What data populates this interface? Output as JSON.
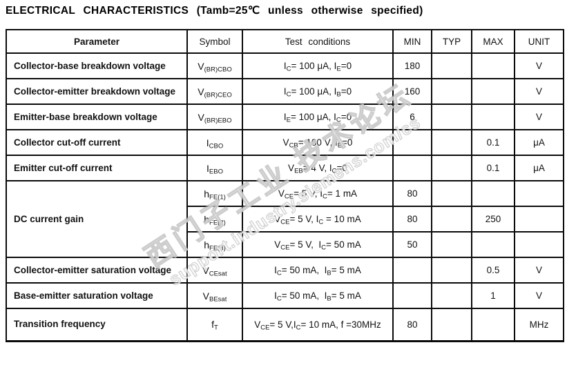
{
  "title": "ELECTRICAL CHARACTERISTICS (Tamb=25℃ unless otherwise specified)",
  "watermark": {
    "line1": "西门子工业 技术论坛",
    "line2": "support.industry.siemens.com/cs"
  },
  "colors": {
    "table_line": "#0a0a0a",
    "text": "#111111",
    "watermark_gray": "#a5a5a5",
    "background": "#ffffff"
  },
  "table": {
    "headers": [
      "Parameter",
      "Symbol",
      "Test conditions",
      "MIN",
      "TYP",
      "MAX",
      "UNIT"
    ],
    "rows": [
      {
        "param": "Collector-base breakdown voltage",
        "symbol": "V~(BR)CBO~",
        "conditions": "I~C~= 100 μA, I~E~=0",
        "min": "180",
        "typ": "",
        "max": "",
        "unit": "V"
      },
      {
        "param": "Collector-emitter breakdown voltage",
        "symbol": "V~(BR)CEO~",
        "conditions": "I~C~= 100 μA, I~B~=0",
        "min": "160",
        "typ": "",
        "max": "",
        "unit": "V"
      },
      {
        "param": "Emitter-base breakdown voltage",
        "symbol": "V~(BR)EBO~",
        "conditions": "I~E~= 100 μA, I~C~=0",
        "min": "6",
        "typ": "",
        "max": "",
        "unit": "V"
      },
      {
        "param": "Collector cut-off current",
        "symbol": "I~CBO~",
        "conditions": "V~CB~= 180 V, I~E~=0",
        "min": "",
        "typ": "",
        "max": "0.1",
        "unit": "μA"
      },
      {
        "param": "Emitter cut-off current",
        "symbol": "I~EBO~",
        "conditions": "V~EB~= 4 V, I~C~=0",
        "min": "",
        "typ": "",
        "max": "0.1",
        "unit": "μA"
      },
      {
        "param": "DC current gain",
        "rowspan": 3,
        "symbol": "h~FE(1)~",
        "conditions": "V~CE~= 5 V, I~C~= 1 mA",
        "min": "80",
        "typ": "",
        "max": "",
        "unit": ""
      },
      {
        "param": null,
        "symbol": "h~FE(2)~",
        "conditions": "V~CE~= 5 V, I~C~ = 10 mA",
        "min": "80",
        "typ": "",
        "max": "250",
        "unit": ""
      },
      {
        "param": null,
        "symbol": "h~FE(3)~",
        "conditions": "V~CE~= 5 V,  I~C~= 50 mA",
        "min": "50",
        "typ": "",
        "max": "",
        "unit": ""
      },
      {
        "param": "Collector-emitter saturation voltage",
        "symbol": "V~CEsat~",
        "conditions": "I~C~= 50 mA,  I~B~= 5 mA",
        "min": "",
        "typ": "",
        "max": "0.5",
        "unit": "V"
      },
      {
        "param": "Base-emitter saturation voltage",
        "symbol": "V~BEsat~",
        "conditions": "I~C~= 50 mA,  I~B~= 5 mA",
        "min": "",
        "typ": "",
        "max": "1",
        "unit": "V"
      },
      {
        "param": "Transition frequency",
        "symbol": "f~T~",
        "conditions": "V~CE~= 5 V,I~C~= 10 mA, f =30MHz",
        "min": "80",
        "typ": "",
        "max": "",
        "unit": "MHz",
        "tall": true
      }
    ]
  }
}
